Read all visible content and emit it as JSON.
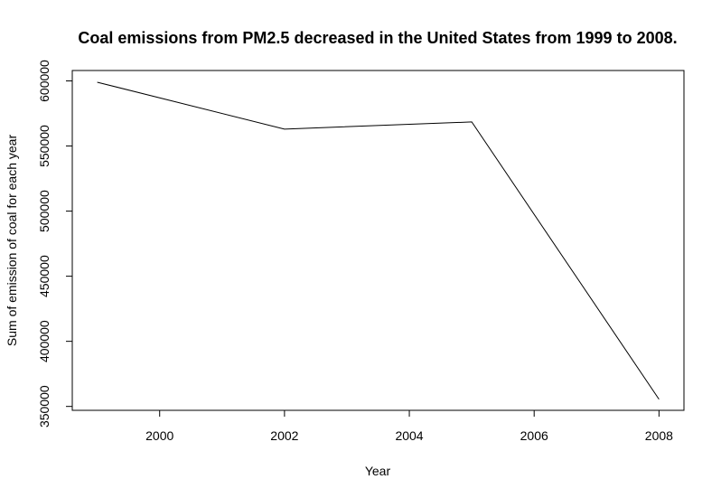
{
  "chart_data": {
    "type": "line",
    "title": "Coal emissions from PM2.5 decreased in the United States from 1999 to 2008.",
    "xlabel": "Year",
    "ylabel": "Sum of emission of coal for each year",
    "x": [
      1999,
      2002,
      2005,
      2008
    ],
    "series": [
      {
        "values": [
          599000,
          563000,
          568500,
          355500
        ]
      }
    ],
    "xticks": [
      2000,
      2002,
      2004,
      2006,
      2008
    ],
    "yticks": [
      350000,
      400000,
      450000,
      500000,
      550000,
      600000
    ],
    "xlim": [
      1998.6,
      2008.4
    ],
    "ylim": [
      347000,
      608000
    ],
    "grid": false,
    "legend": false,
    "line_color": "#000000"
  }
}
